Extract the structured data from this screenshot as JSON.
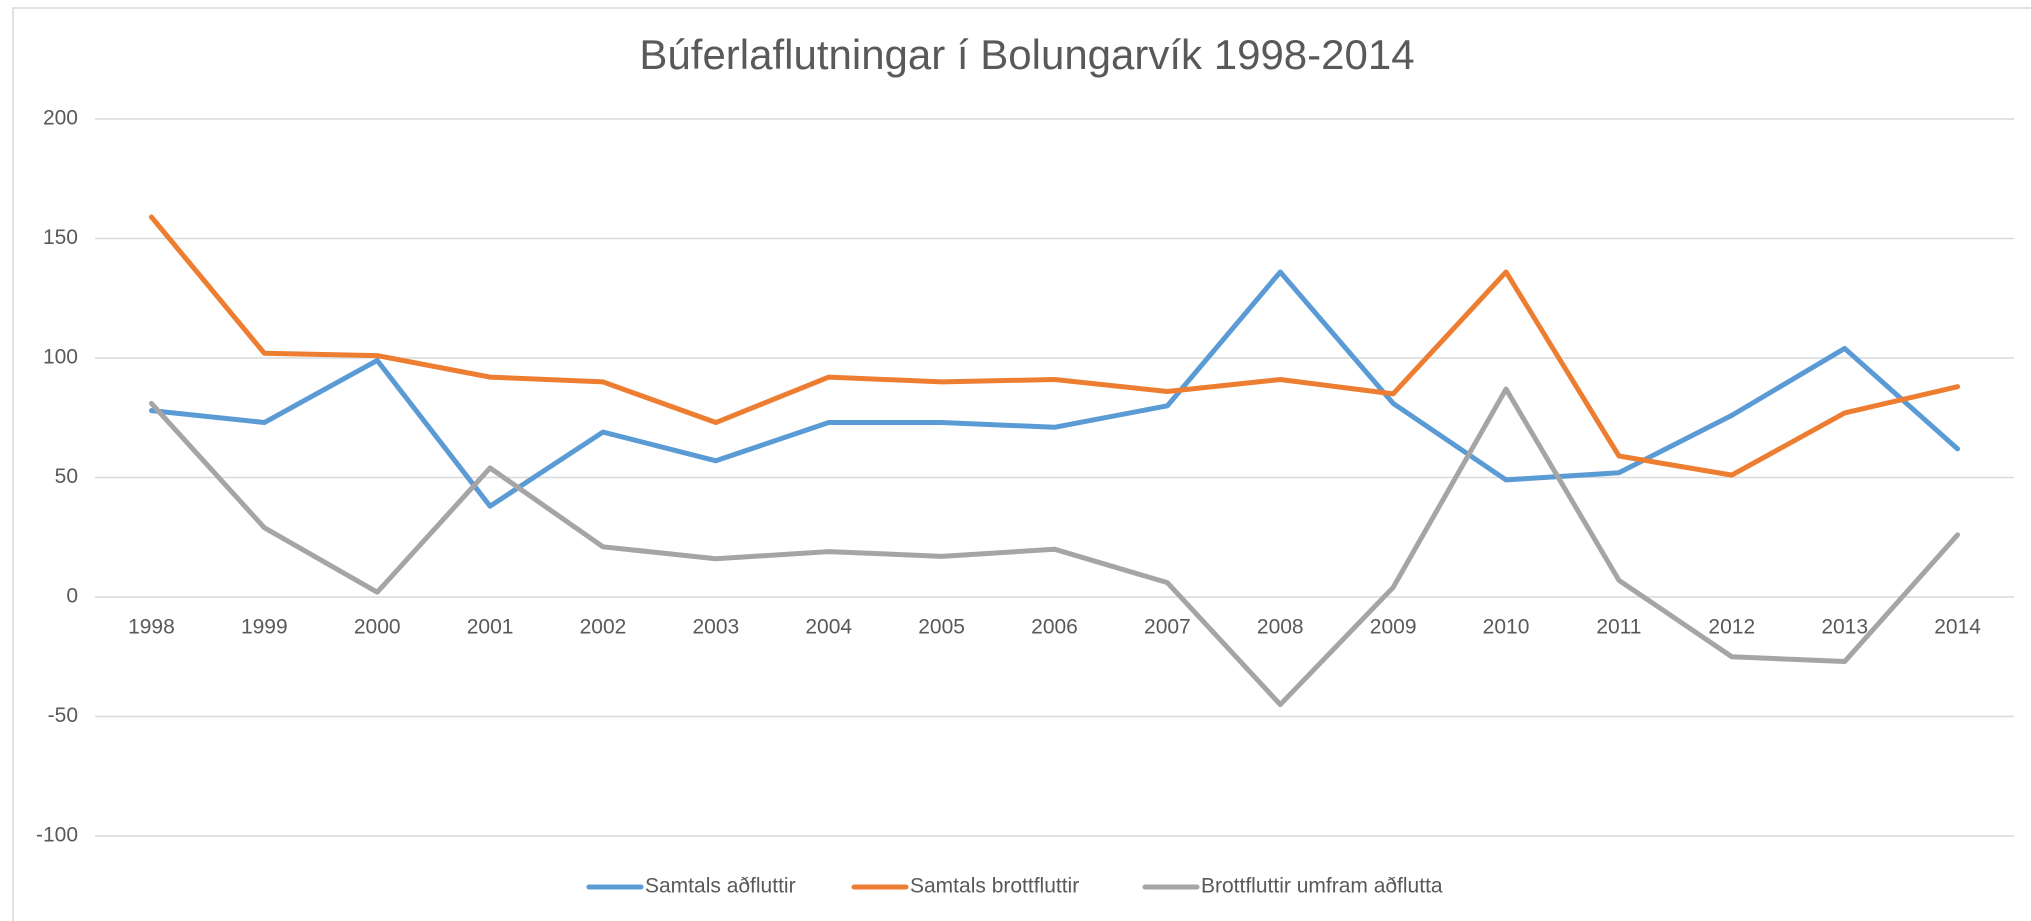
{
  "chart_data": {
    "type": "line",
    "title": "Búferlaflutningar í Bolungarvík 1998-2014",
    "categories": [
      "1998",
      "1999",
      "2000",
      "2001",
      "2002",
      "2003",
      "2004",
      "2005",
      "2006",
      "2007",
      "2008",
      "2009",
      "2010",
      "2011",
      "2012",
      "2013",
      "2014"
    ],
    "series": [
      {
        "name": "Samtals aðfluttir",
        "color": "#5b9bd5",
        "values": [
          78,
          73,
          99,
          38,
          69,
          57,
          73,
          73,
          71,
          80,
          136,
          81,
          49,
          52,
          76,
          104,
          62
        ]
      },
      {
        "name": "Samtals brottfluttir",
        "color": "#ed7d31",
        "values": [
          159,
          102,
          101,
          92,
          90,
          73,
          92,
          90,
          91,
          86,
          91,
          85,
          136,
          59,
          51,
          77,
          88
        ]
      },
      {
        "name": "Brottfluttir umfram aðflutta",
        "color": "#a5a5a5",
        "values": [
          81,
          29,
          2,
          54,
          21,
          16,
          19,
          17,
          20,
          6,
          -45,
          4,
          87,
          7,
          -25,
          -27,
          26
        ]
      }
    ],
    "ylim": [
      -100,
      200
    ],
    "yticks": [
      -100,
      -50,
      0,
      50,
      100,
      150,
      200
    ],
    "grid": true,
    "legend": "bottom"
  }
}
